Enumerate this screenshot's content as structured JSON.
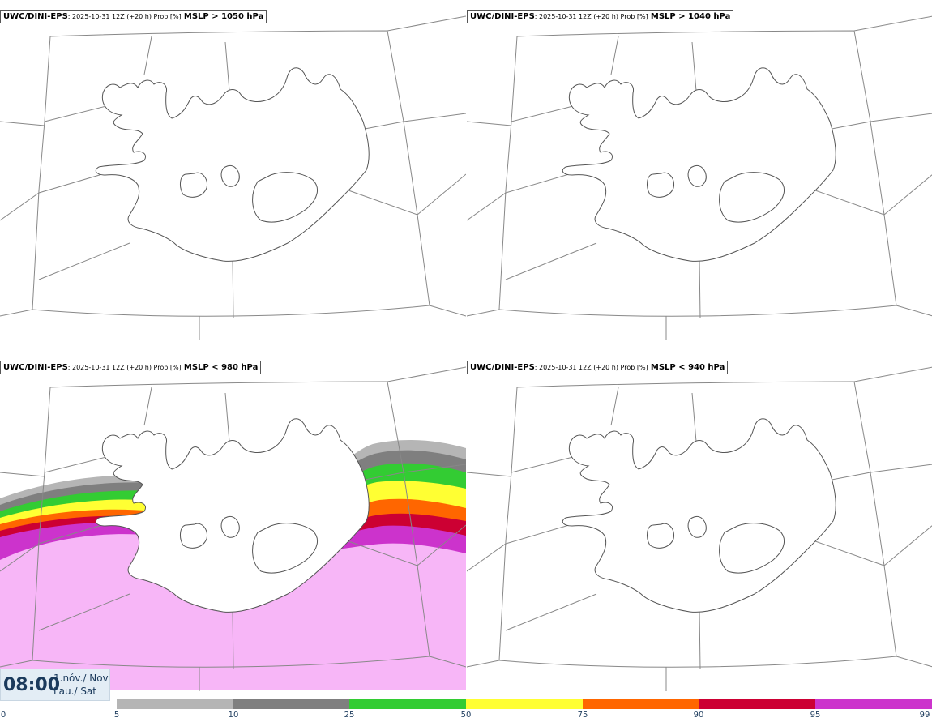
{
  "panels": [
    {
      "model": "UWC/DINI-EPS",
      "meta": ": 2025-10-31 12Z (+20 h) Prob [%]",
      "threshold": "MSLP > 1050 hPa"
    },
    {
      "model": "UWC/DINI-EPS",
      "meta": ": 2025-10-31 12Z (+20 h) Prob [%]",
      "threshold": "MSLP > 1040 hPa"
    },
    {
      "model": "UWC/DINI-EPS",
      "meta": ": 2025-10-31 12Z (+20 h) Prob [%]",
      "threshold": "MSLP < 980 hPa"
    },
    {
      "model": "UWC/DINI-EPS",
      "meta": ": 2025-10-31 12Z (+20 h) Prob [%]",
      "threshold": "MSLP < 940 hPa"
    }
  ],
  "time": {
    "clock": "08:00",
    "date_line1": "1.nóv./ Nov",
    "date_line2": "Lau./ Sat"
  },
  "colorbar": {
    "ticks": [
      "0",
      "5",
      "10",
      "25",
      "50",
      "75",
      "90",
      "95",
      "99"
    ],
    "colors": [
      "#b5b5b5",
      "#7f7f7f",
      "#33cc33",
      "#ffff33",
      "#ff6600",
      "#cc0033",
      "#cc33cc",
      "#f7b6f7"
    ]
  },
  "colors": {
    "coast": "#555555",
    "grid": "#888888"
  }
}
